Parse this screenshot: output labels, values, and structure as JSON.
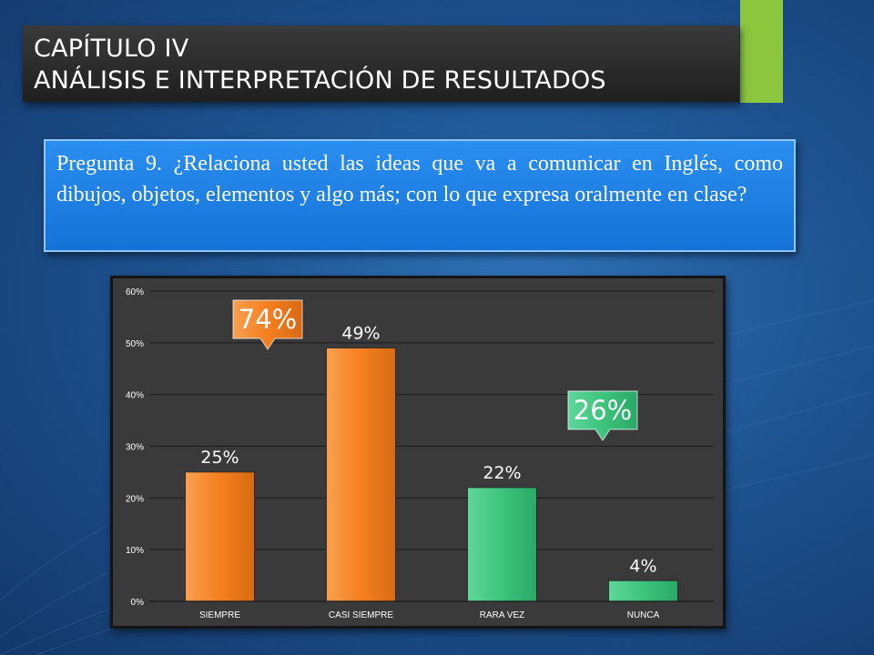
{
  "title": {
    "line1": "CAPÍTULO IV",
    "line2": "ANÁLISIS E INTERPRETACIÓN DE RESULTADOS"
  },
  "question": {
    "text": "Pregunta 9. ¿Relaciona usted las ideas que va a comunicar en Inglés, como dibujos, objetos, elementos y algo más; con lo que expresa oralmente en clase?"
  },
  "colors": {
    "positive": "#f57f20",
    "negative": "#3cc47c",
    "plot_bg": "#3a3a3a",
    "accent": "#8cc63f"
  },
  "chart_data": {
    "type": "bar",
    "categories": [
      "SIEMPRE",
      "CASI SIEMPRE",
      "RARA VEZ",
      "NUNCA"
    ],
    "values": [
      25,
      49,
      22,
      4
    ],
    "data_labels": [
      "25%",
      "49%",
      "22%",
      "4%"
    ],
    "bar_colors": [
      "#f57f20",
      "#f57f20",
      "#3cc47c",
      "#3cc47c"
    ],
    "ylim": [
      0,
      60
    ],
    "yticks": [
      "0%",
      "10%",
      "20%",
      "30%",
      "40%",
      "50%",
      "60%"
    ],
    "grid": true,
    "xlabel": "",
    "ylabel": "",
    "annotations": [
      {
        "text": "74%",
        "color": "#f57f20",
        "shape": "down-callout",
        "near_category": "SIEMPRE"
      },
      {
        "text": "26%",
        "color": "#3cc47c",
        "shape": "down-callout",
        "near_category": "RARA VEZ"
      }
    ]
  }
}
